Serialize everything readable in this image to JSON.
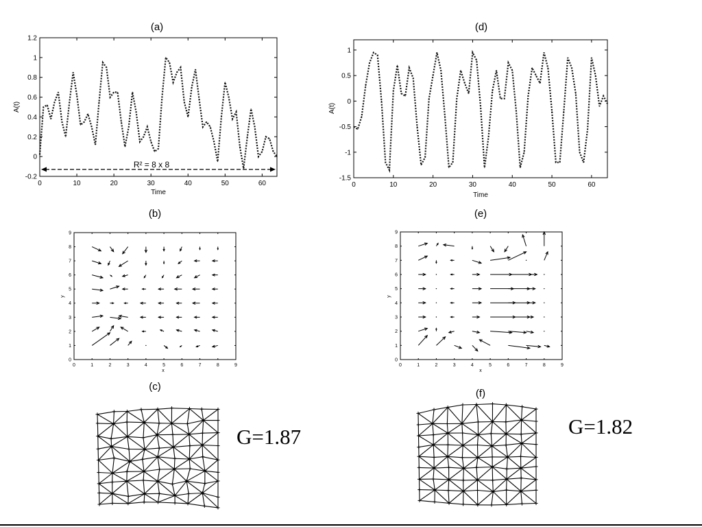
{
  "chart_data": [
    {
      "id": "a",
      "panel_label": "(a)",
      "type": "line",
      "line_style": "dotted",
      "xlabel": "Time",
      "ylabel": "A(t)",
      "xlim": [
        0,
        64
      ],
      "ylim": [
        -0.2,
        1.2
      ],
      "xticks": [
        0,
        10,
        20,
        30,
        40,
        50,
        60
      ],
      "yticks": [
        -0.2,
        0,
        0.2,
        0.4,
        0.6,
        0.8,
        1,
        1.2
      ],
      "series": [
        {
          "x": [
            0,
            1,
            2,
            3,
            4,
            5,
            6,
            7,
            8,
            9,
            10,
            11,
            12,
            13,
            14,
            15,
            16,
            17,
            18,
            19,
            20,
            21,
            22,
            23,
            24,
            25,
            26,
            27,
            28,
            29,
            30,
            31,
            32,
            33,
            34,
            35,
            36,
            37,
            38,
            39,
            40,
            41,
            42,
            43,
            44,
            45,
            46,
            47,
            48,
            49,
            50,
            51,
            52,
            53,
            54,
            55,
            56,
            57,
            58,
            59,
            60,
            61,
            62,
            63,
            64
          ],
          "y": [
            0.02,
            0.5,
            0.52,
            0.38,
            0.55,
            0.65,
            0.35,
            0.2,
            0.55,
            0.85,
            0.62,
            0.32,
            0.35,
            0.43,
            0.3,
            0.12,
            0.55,
            0.95,
            0.9,
            0.6,
            0.65,
            0.65,
            0.35,
            0.1,
            0.3,
            0.65,
            0.45,
            0.15,
            0.2,
            0.3,
            0.15,
            0.05,
            0.08,
            0.6,
            1.0,
            0.95,
            0.75,
            0.85,
            0.9,
            0.55,
            0.4,
            0.7,
            0.88,
            0.58,
            0.3,
            0.35,
            0.3,
            0.15,
            -0.05,
            0.4,
            0.75,
            0.6,
            0.38,
            0.45,
            0.1,
            -0.12,
            0.2,
            0.48,
            0.3,
            0.0,
            0.05,
            0.2,
            0.18,
            0.05,
            0.0
          ]
        }
      ],
      "annotation": {
        "text": "R² = 8 x 8",
        "x_from": 0,
        "x_to": 64,
        "y": -0.13
      }
    },
    {
      "id": "d",
      "panel_label": "(d)",
      "type": "line",
      "line_style": "dotted",
      "xlabel": "Time",
      "ylabel": "A(t)",
      "xlim": [
        0,
        64
      ],
      "ylim": [
        -1.5,
        1.2
      ],
      "xticks": [
        0,
        10,
        20,
        30,
        40,
        50,
        60
      ],
      "yticks": [
        -1.5,
        -1,
        -0.5,
        0,
        0.5,
        1
      ],
      "series": [
        {
          "x": [
            0,
            1,
            2,
            3,
            4,
            5,
            6,
            7,
            8,
            9,
            10,
            11,
            12,
            13,
            14,
            15,
            16,
            17,
            18,
            19,
            20,
            21,
            22,
            23,
            24,
            25,
            26,
            27,
            28,
            29,
            30,
            31,
            32,
            33,
            34,
            35,
            36,
            37,
            38,
            39,
            40,
            41,
            42,
            43,
            44,
            45,
            46,
            47,
            48,
            49,
            50,
            51,
            52,
            53,
            54,
            55,
            56,
            57,
            58,
            59,
            60,
            61,
            62,
            63,
            64
          ],
          "y": [
            -0.5,
            -0.55,
            -0.3,
            0.3,
            0.75,
            0.95,
            0.9,
            0.0,
            -1.2,
            -1.35,
            0.2,
            0.7,
            0.15,
            0.1,
            0.65,
            0.45,
            -0.5,
            -1.25,
            -1.1,
            0.05,
            0.5,
            0.95,
            0.6,
            -0.3,
            -1.3,
            -1.2,
            0.05,
            0.6,
            0.35,
            0.15,
            0.95,
            0.8,
            -0.1,
            -1.3,
            -0.7,
            0.2,
            0.6,
            0.05,
            0.05,
            0.75,
            0.6,
            -0.2,
            -1.3,
            -1.0,
            0.1,
            0.65,
            0.5,
            0.35,
            0.95,
            0.65,
            -0.2,
            -1.2,
            -1.2,
            -0.2,
            0.85,
            0.65,
            0.15,
            -1.0,
            -1.2,
            -0.55,
            0.85,
            0.5,
            -0.1,
            0.1,
            -0.05
          ]
        }
      ]
    },
    {
      "id": "b",
      "panel_label": "(b)",
      "type": "scatter",
      "mark": "arrow",
      "xlabel": "x",
      "ylabel": "y",
      "xlim": [
        0,
        9
      ],
      "ylim": [
        0,
        9
      ],
      "xticks": [
        0,
        1,
        2,
        3,
        4,
        5,
        6,
        7,
        8,
        9
      ],
      "yticks": [
        0,
        1,
        2,
        3,
        4,
        5,
        6,
        7,
        8,
        9
      ],
      "arrows": [
        [
          1,
          8,
          0.5,
          -0.3
        ],
        [
          2,
          8,
          0.2,
          -0.35
        ],
        [
          3,
          8,
          -0.3,
          -0.5
        ],
        [
          4,
          8,
          0.0,
          -0.4
        ],
        [
          5,
          8,
          0.0,
          -0.3
        ],
        [
          6,
          8,
          -0.1,
          -0.3
        ],
        [
          7,
          8,
          0.0,
          -0.2
        ],
        [
          8,
          8,
          0.0,
          -0.2
        ],
        [
          1,
          7,
          0.5,
          -0.2
        ],
        [
          2,
          7,
          -0.1,
          -0.3
        ],
        [
          3,
          7,
          -0.5,
          -0.4
        ],
        [
          4,
          7,
          0.0,
          -0.3
        ],
        [
          5,
          7,
          0.0,
          -0.2
        ],
        [
          6,
          7,
          -0.2,
          -0.2
        ],
        [
          7,
          7,
          -0.3,
          0.0
        ],
        [
          8,
          7,
          -0.3,
          0.0
        ],
        [
          1,
          6,
          0.6,
          -0.2
        ],
        [
          2,
          6,
          0.1,
          -0.1
        ],
        [
          3,
          6,
          -0.3,
          -0.1
        ],
        [
          4,
          6,
          -0.1,
          -0.2
        ],
        [
          5,
          6,
          -0.1,
          -0.2
        ],
        [
          6,
          6,
          -0.3,
          -0.2
        ],
        [
          7,
          6,
          -0.3,
          -0.2
        ],
        [
          8,
          6,
          -0.3,
          0.0
        ],
        [
          1,
          5,
          0.6,
          -0.1
        ],
        [
          2,
          5,
          0.5,
          0.2
        ],
        [
          3,
          5,
          -0.3,
          0.0
        ],
        [
          4,
          5,
          -0.2,
          0.0
        ],
        [
          5,
          5,
          -0.3,
          0.0
        ],
        [
          6,
          5,
          -0.4,
          0.0
        ],
        [
          7,
          5,
          -0.4,
          0.0
        ],
        [
          8,
          5,
          -0.3,
          0.0
        ],
        [
          1,
          4,
          0.4,
          0.0
        ],
        [
          2,
          4,
          0.2,
          0.0
        ],
        [
          3,
          4,
          -0.2,
          0.0
        ],
        [
          4,
          4,
          -0.3,
          0.0
        ],
        [
          5,
          4,
          -0.3,
          0.0
        ],
        [
          6,
          4,
          -0.3,
          0.0
        ],
        [
          7,
          4,
          -0.4,
          0.0
        ],
        [
          8,
          4,
          -0.3,
          0.0
        ],
        [
          1,
          3,
          0.6,
          0.1
        ],
        [
          2,
          3,
          0.6,
          -0.1
        ],
        [
          3,
          3,
          -0.5,
          0.1
        ],
        [
          4,
          3,
          -0.3,
          0.0
        ],
        [
          5,
          3,
          -0.3,
          0.0
        ],
        [
          6,
          3,
          -0.3,
          0.0
        ],
        [
          7,
          3,
          -0.3,
          0.0
        ],
        [
          8,
          3,
          -0.3,
          0.0
        ],
        [
          1,
          2,
          0.4,
          0.3
        ],
        [
          2,
          2,
          0.2,
          0.4
        ],
        [
          3,
          2,
          -0.4,
          0.3
        ],
        [
          4,
          2,
          -0.2,
          0.0
        ],
        [
          5,
          2,
          -0.2,
          0.1
        ],
        [
          6,
          2,
          -0.3,
          0.1
        ],
        [
          7,
          2,
          -0.3,
          0.1
        ],
        [
          8,
          2,
          -0.3,
          0.1
        ],
        [
          1,
          1,
          1.0,
          0.9
        ],
        [
          2,
          1,
          0.5,
          0.5
        ],
        [
          3,
          1,
          0.2,
          0.3
        ],
        [
          4,
          1,
          0.0,
          0.0
        ],
        [
          5,
          1,
          0.2,
          -0.2
        ],
        [
          6,
          1,
          -0.1,
          -0.1
        ],
        [
          7,
          1,
          -0.2,
          -0.1
        ],
        [
          8,
          1,
          -0.3,
          -0.1
        ]
      ]
    },
    {
      "id": "e",
      "panel_label": "(e)",
      "type": "scatter",
      "mark": "arrow",
      "xlabel": "x",
      "ylabel": "y",
      "xlim": [
        0,
        9
      ],
      "ylim": [
        0,
        9
      ],
      "xticks": [
        0,
        1,
        2,
        3,
        4,
        5,
        6,
        7,
        8,
        9
      ],
      "yticks": [
        0,
        1,
        2,
        3,
        4,
        5,
        6,
        7,
        8,
        9
      ],
      "arrows": [
        [
          1,
          8,
          0.5,
          0.2
        ],
        [
          2,
          8,
          0.1,
          0.2
        ],
        [
          3,
          8,
          -0.6,
          0.1
        ],
        [
          4,
          8,
          0.0,
          -0.2
        ],
        [
          5,
          8,
          0.2,
          -0.4
        ],
        [
          6,
          8,
          -0.2,
          -0.4
        ],
        [
          7,
          8,
          -0.2,
          0.8
        ],
        [
          8,
          8,
          0.0,
          1.0
        ],
        [
          1,
          7,
          0.5,
          0.3
        ],
        [
          2,
          7,
          0.0,
          -0.2
        ],
        [
          3,
          7,
          -0.2,
          0.0
        ],
        [
          4,
          7,
          0.5,
          -0.2
        ],
        [
          5,
          7,
          1.1,
          0.2
        ],
        [
          6,
          7,
          1.0,
          0.6
        ],
        [
          7,
          7,
          0.0,
          0.0
        ],
        [
          8,
          7,
          0.2,
          0.6
        ],
        [
          1,
          6,
          0.4,
          0.0
        ],
        [
          2,
          6,
          0.0,
          0.0
        ],
        [
          3,
          6,
          -0.2,
          0.0
        ],
        [
          4,
          6,
          0.4,
          0.0
        ],
        [
          5,
          6,
          1.2,
          0.0
        ],
        [
          6,
          6,
          1.3,
          0.0
        ],
        [
          7,
          6,
          0.6,
          0.0
        ],
        [
          8,
          6,
          0.0,
          0.0
        ],
        [
          1,
          5,
          0.4,
          0.0
        ],
        [
          2,
          5,
          0.0,
          0.0
        ],
        [
          3,
          5,
          -0.2,
          0.0
        ],
        [
          4,
          5,
          0.5,
          0.0
        ],
        [
          5,
          5,
          1.3,
          0.0
        ],
        [
          6,
          5,
          1.2,
          0.0
        ],
        [
          7,
          5,
          0.5,
          0.0
        ],
        [
          8,
          5,
          0.0,
          0.0
        ],
        [
          1,
          4,
          0.4,
          0.0
        ],
        [
          2,
          4,
          0.0,
          0.0
        ],
        [
          3,
          4,
          -0.2,
          0.0
        ],
        [
          4,
          4,
          0.5,
          0.0
        ],
        [
          5,
          4,
          1.4,
          0.0
        ],
        [
          6,
          4,
          1.2,
          0.0
        ],
        [
          7,
          4,
          0.5,
          0.0
        ],
        [
          8,
          4,
          0.0,
          0.0
        ],
        [
          1,
          3,
          0.4,
          0.0
        ],
        [
          2,
          3,
          0.0,
          0.0
        ],
        [
          3,
          3,
          -0.2,
          0.0
        ],
        [
          4,
          3,
          0.4,
          0.0
        ],
        [
          5,
          3,
          1.4,
          0.0
        ],
        [
          6,
          3,
          1.2,
          0.0
        ],
        [
          7,
          3,
          0.4,
          0.0
        ],
        [
          8,
          3,
          0.0,
          0.0
        ],
        [
          1,
          2,
          0.5,
          0.2
        ],
        [
          2,
          2,
          0.0,
          0.2
        ],
        [
          3,
          2,
          -0.3,
          -0.1
        ],
        [
          4,
          2,
          0.4,
          -0.1
        ],
        [
          5,
          2,
          1.2,
          -0.1
        ],
        [
          6,
          2,
          1.0,
          -0.1
        ],
        [
          7,
          2,
          0.4,
          -0.1
        ],
        [
          8,
          2,
          0.0,
          0.0
        ],
        [
          1,
          1,
          0.5,
          0.7
        ],
        [
          2,
          1,
          0.5,
          0.6
        ],
        [
          3,
          1,
          0.4,
          -0.2
        ],
        [
          4,
          1,
          0.3,
          -0.4
        ],
        [
          5,
          1,
          -0.6,
          0.4
        ],
        [
          6,
          1,
          1.2,
          -0.2
        ],
        [
          7,
          1,
          0.8,
          -0.1
        ],
        [
          8,
          1,
          0.3,
          -0.1
        ]
      ]
    },
    {
      "id": "c",
      "panel_label": "(c)",
      "type": "mesh",
      "grid": {
        "cols": 8,
        "rows": 8
      },
      "value_label": "G=1.87"
    },
    {
      "id": "f",
      "panel_label": "(f)",
      "type": "mesh",
      "grid": {
        "cols": 8,
        "rows": 8
      },
      "value_label": "G=1.82"
    }
  ]
}
